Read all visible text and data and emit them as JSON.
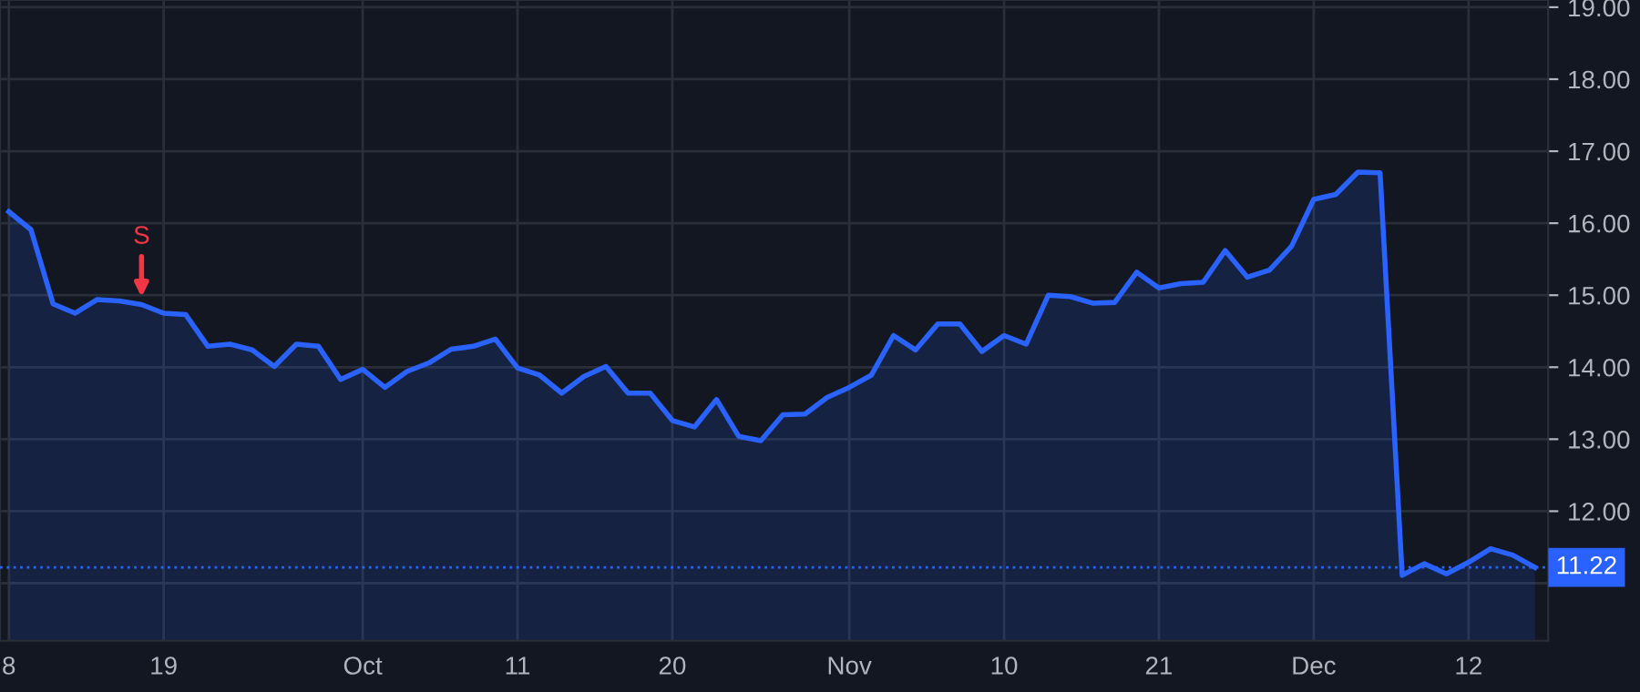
{
  "chart_data": {
    "type": "area",
    "categories": [
      "8",
      null,
      null,
      null,
      null,
      null,
      null,
      "19",
      null,
      null,
      null,
      null,
      null,
      null,
      null,
      null,
      "Oct",
      null,
      null,
      null,
      null,
      null,
      null,
      "11",
      null,
      null,
      null,
      null,
      null,
      null,
      "20",
      null,
      null,
      null,
      null,
      null,
      null,
      null,
      "Nov",
      null,
      null,
      null,
      null,
      null,
      null,
      "10",
      null,
      null,
      null,
      null,
      null,
      null,
      "21",
      null,
      null,
      null,
      null,
      null,
      null,
      "Dec",
      null,
      null,
      null,
      null,
      null,
      null,
      "12",
      null,
      null,
      null
    ],
    "series": [
      {
        "color": "#2962ff",
        "values": [
          16.16,
          15.91,
          14.88,
          14.75,
          14.94,
          14.92,
          14.87,
          14.75,
          14.73,
          14.29,
          14.32,
          14.24,
          14.01,
          14.32,
          14.29,
          13.83,
          13.97,
          13.72,
          13.94,
          14.06,
          14.25,
          14.29,
          14.39,
          13.99,
          13.89,
          13.64,
          13.87,
          14.01,
          13.64,
          13.64,
          13.26,
          13.17,
          13.55,
          13.04,
          12.98,
          13.34,
          13.35,
          13.58,
          13.72,
          13.89,
          14.44,
          14.24,
          14.6,
          14.6,
          14.22,
          14.44,
          14.32,
          15.0,
          14.98,
          14.89,
          14.9,
          15.32,
          15.1,
          15.16,
          15.18,
          15.62,
          15.25,
          15.35,
          15.68,
          16.33,
          16.4,
          16.71,
          16.7,
          11.11,
          11.27,
          11.13,
          11.29,
          11.48,
          11.39,
          11.22
        ]
      }
    ],
    "ylim": [
      10.2,
      19.1
    ],
    "yticks": [
      {
        "value": 11,
        "label": null
      },
      {
        "value": 12,
        "label": "12.00"
      },
      {
        "value": 13,
        "label": "13.00"
      },
      {
        "value": 14,
        "label": "14.00"
      },
      {
        "value": 15,
        "label": "15.00"
      },
      {
        "value": 16,
        "label": "16.00"
      },
      {
        "value": 17,
        "label": "17.00"
      },
      {
        "value": 18,
        "label": "18.00"
      },
      {
        "value": 19,
        "label": "19.00"
      }
    ],
    "ref_lines": [
      {
        "axis": "y",
        "value": 11.22,
        "label": "11.22",
        "color": "#2962ff",
        "line_style": "dotted"
      }
    ],
    "annotations": [
      {
        "text": "S",
        "y": 14.87
      }
    ],
    "grid": true,
    "legend": false
  }
}
